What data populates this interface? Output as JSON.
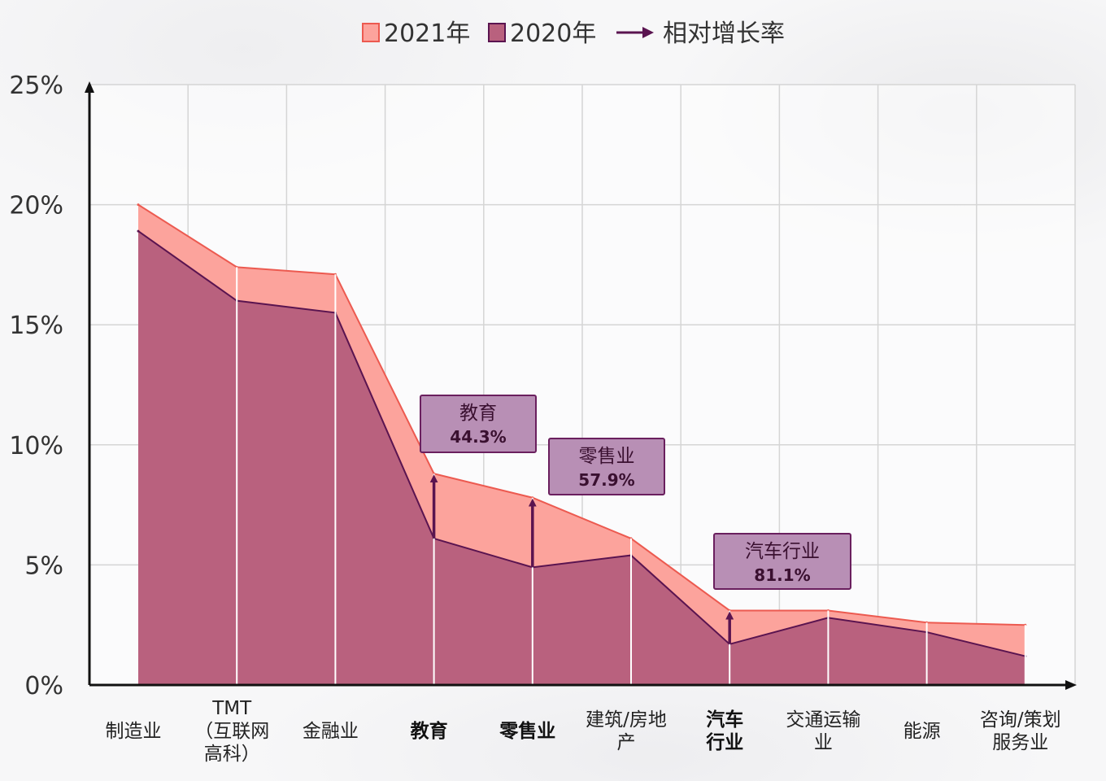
{
  "chart_data": {
    "type": "area",
    "categories": [
      [
        "制造业"
      ],
      [
        "TMT",
        "（互联网",
        "高科）"
      ],
      [
        "金融业"
      ],
      [
        "教育"
      ],
      [
        "零售业"
      ],
      [
        "建筑/房地",
        "产"
      ],
      [
        "汽车",
        "行业"
      ],
      [
        "交通运输",
        "业"
      ],
      [
        "能源"
      ],
      [
        "咨询/策划",
        "服务业"
      ]
    ],
    "highlight_categories": [
      3,
      4,
      6
    ],
    "series": [
      {
        "name": "2021年",
        "values": [
          20.0,
          17.4,
          17.1,
          8.8,
          7.8,
          6.1,
          3.1,
          3.1,
          2.6,
          2.5
        ],
        "color": "#fca39c",
        "line_color": "#ec5a50"
      },
      {
        "name": "2020年",
        "values": [
          18.9,
          16.0,
          15.5,
          6.1,
          4.9,
          5.4,
          1.7,
          2.8,
          2.2,
          1.2
        ],
        "color": "#b9617e",
        "line_color": "#5a1450"
      }
    ],
    "growth_legend": "相对增长率",
    "growth_color": "#5a1450",
    "annotations": [
      {
        "index": 3,
        "name": "教育",
        "value": "44.3%"
      },
      {
        "index": 4,
        "name": "零售业",
        "value": "57.9%"
      },
      {
        "index": 6,
        "name": "汽车行业",
        "value": "81.1%"
      }
    ],
    "y_ticks": [
      "0%",
      "5%",
      "10%",
      "15%",
      "20%",
      "25%"
    ],
    "ylim": [
      0,
      25
    ],
    "grid": true,
    "legend_position": "top-center",
    "annotation_box_color": "#b88fb5",
    "annotation_border_color": "#6a1f5e"
  }
}
